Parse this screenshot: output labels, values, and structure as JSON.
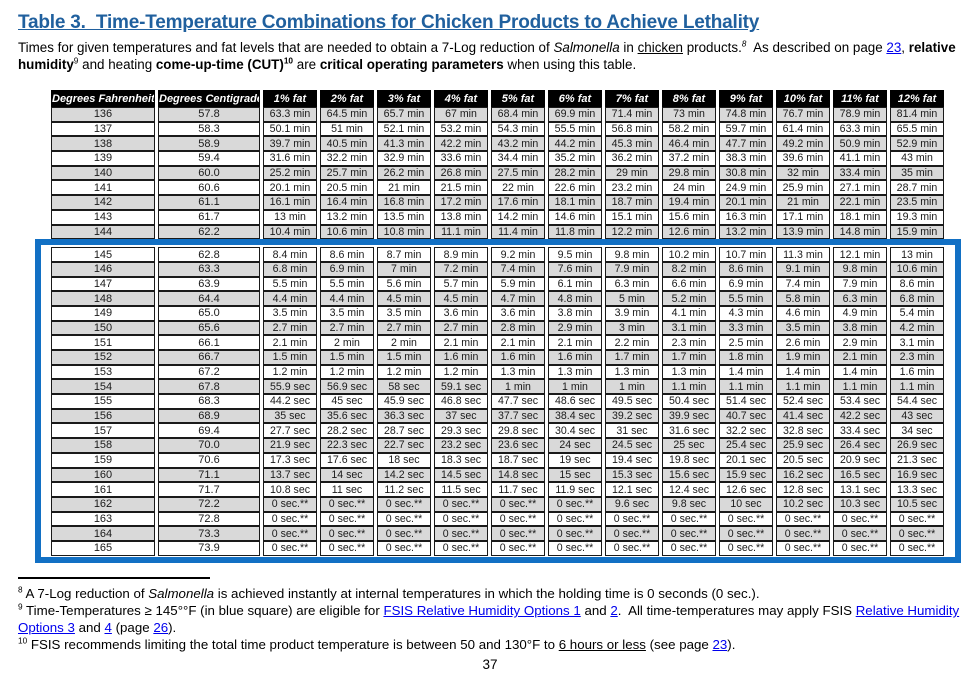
{
  "title": "Table 3.  Time-Temperature Combinations for Chicken Products to Achieve Lethality",
  "intro": {
    "segments": [
      {
        "t": "Times for given temperatures and fat levels that are needed to obtain a 7-Log reduction of "
      },
      {
        "t": "Salmonella",
        "s": "i"
      },
      {
        "t": " in "
      },
      {
        "t": "chicken",
        "s": "u"
      },
      {
        "t": " products.",
        "s": ""
      },
      {
        "t": "8",
        "s": "sup i"
      },
      {
        "t": "  As described on page "
      },
      {
        "t": "23",
        "s": "link"
      },
      {
        "t": ", "
      },
      {
        "t": "relative humidity",
        "s": "b"
      },
      {
        "t": "9",
        "s": "sup"
      },
      {
        "t": " and heating "
      },
      {
        "t": "come-up-time (CUT)",
        "s": "b"
      },
      {
        "t": "10",
        "s": "sup b"
      },
      {
        "t": " are "
      },
      {
        "t": "critical operating parameters",
        "s": "b"
      },
      {
        "t": " when using this table."
      }
    ]
  },
  "table": {
    "headers": [
      "Degrees Fahrenheit",
      "Degrees Centigrade",
      "1% fat",
      "2% fat",
      "3% fat",
      "4% fat",
      "5% fat",
      "6% fat",
      "7% fat",
      "8% fat",
      "9% fat",
      "10% fat",
      "11% fat",
      "12% fat"
    ],
    "rows_above": [
      [
        "136",
        "57.8",
        "63.3 min",
        "64.5 min",
        "65.7 min",
        "67 min",
        "68.4 min",
        "69.9 min",
        "71.4 min",
        "73 min",
        "74.8 min",
        "76.7 min",
        "78.9 min",
        "81.4 min"
      ],
      [
        "137",
        "58.3",
        "50.1 min",
        "51 min",
        "52.1 min",
        "53.2 min",
        "54.3 min",
        "55.5 min",
        "56.8 min",
        "58.2 min",
        "59.7 min",
        "61.4 min",
        "63.3 min",
        "65.5 min"
      ],
      [
        "138",
        "58.9",
        "39.7 min",
        "40.5 min",
        "41.3 min",
        "42.2 min",
        "43.2 min",
        "44.2 min",
        "45.3 min",
        "46.4 min",
        "47.7 min",
        "49.2 min",
        "50.9 min",
        "52.9 min"
      ],
      [
        "139",
        "59.4",
        "31.6 min",
        "32.2 min",
        "32.9 min",
        "33.6 min",
        "34.4 min",
        "35.2 min",
        "36.2 min",
        "37.2 min",
        "38.3 min",
        "39.6 min",
        "41.1 min",
        "43 min"
      ],
      [
        "140",
        "60.0",
        "25.2 min",
        "25.7 min",
        "26.2 min",
        "26.8 min",
        "27.5 min",
        "28.2 min",
        "29 min",
        "29.8 min",
        "30.8 min",
        "32 min",
        "33.4 min",
        "35 min"
      ],
      [
        "141",
        "60.6",
        "20.1 min",
        "20.5 min",
        "21 min",
        "21.5 min",
        "22 min",
        "22.6 min",
        "23.2 min",
        "24 min",
        "24.9 min",
        "25.9 min",
        "27.1 min",
        "28.7 min"
      ],
      [
        "142",
        "61.1",
        "16.1 min",
        "16.4 min",
        "16.8 min",
        "17.2 min",
        "17.6 min",
        "18.1 min",
        "18.7 min",
        "19.4 min",
        "20.1 min",
        "21 min",
        "22.1 min",
        "23.5 min"
      ],
      [
        "143",
        "61.7",
        "13 min",
        "13.2 min",
        "13.5 min",
        "13.8 min",
        "14.2 min",
        "14.6 min",
        "15.1 min",
        "15.6 min",
        "16.3 min",
        "17.1 min",
        "18.1 min",
        "19.3 min"
      ],
      [
        "144",
        "62.2",
        "10.4 min",
        "10.6 min",
        "10.8 min",
        "11.1 min",
        "11.4 min",
        "11.8 min",
        "12.2 min",
        "12.6 min",
        "13.2 min",
        "13.9 min",
        "14.8 min",
        "15.9 min"
      ]
    ],
    "rows_blue": [
      [
        "145",
        "62.8",
        "8.4 min",
        "8.6 min",
        "8.7 min",
        "8.9 min",
        "9.2 min",
        "9.5 min",
        "9.8 min",
        "10.2 min",
        "10.7 min",
        "11.3 min",
        "12.1 min",
        "13 min"
      ],
      [
        "146",
        "63.3",
        "6.8 min",
        "6.9 min",
        "7 min",
        "7.2 min",
        "7.4 min",
        "7.6 min",
        "7.9 min",
        "8.2 min",
        "8.6 min",
        "9.1 min",
        "9.8 min",
        "10.6 min"
      ],
      [
        "147",
        "63.9",
        "5.5 min",
        "5.5 min",
        "5.6 min",
        "5.7 min",
        "5.9 min",
        "6.1 min",
        "6.3 min",
        "6.6 min",
        "6.9 min",
        "7.4 min",
        "7.9 min",
        "8.6 min"
      ],
      [
        "148",
        "64.4",
        "4.4 min",
        "4.4 min",
        "4.5 min",
        "4.5 min",
        "4.7 min",
        "4.8 min",
        "5 min",
        "5.2 min",
        "5.5 min",
        "5.8 min",
        "6.3 min",
        "6.8 min"
      ],
      [
        "149",
        "65.0",
        "3.5 min",
        "3.5 min",
        "3.5 min",
        "3.6 min",
        "3.6 min",
        "3.8 min",
        "3.9 min",
        "4.1 min",
        "4.3 min",
        "4.6 min",
        "4.9 min",
        "5.4 min"
      ],
      [
        "150",
        "65.6",
        "2.7 min",
        "2.7 min",
        "2.7 min",
        "2.7 min",
        "2.8 min",
        "2.9 min",
        "3 min",
        "3.1 min",
        "3.3 min",
        "3.5 min",
        "3.8 min",
        "4.2 min"
      ],
      [
        "151",
        "66.1",
        "2.1 min",
        "2 min",
        "2 min",
        "2.1 min",
        "2.1 min",
        "2.1 min",
        "2.2 min",
        "2.3 min",
        "2.5 min",
        "2.6 min",
        "2.9 min",
        "3.1 min"
      ],
      [
        "152",
        "66.7",
        "1.5 min",
        "1.5 min",
        "1.5 min",
        "1.6 min",
        "1.6 min",
        "1.6 min",
        "1.7 min",
        "1.7 min",
        "1.8 min",
        "1.9 min",
        "2.1 min",
        "2.3 min"
      ],
      [
        "153",
        "67.2",
        "1.2 min",
        "1.2 min",
        "1.2 min",
        "1.2 min",
        "1.3 min",
        "1.3 min",
        "1.3 min",
        "1.3 min",
        "1.4 min",
        "1.4 min",
        "1.4 min",
        "1.6 min"
      ],
      [
        "154",
        "67.8",
        "55.9 sec",
        "56.9 sec",
        "58 sec",
        "59.1 sec",
        "1 min",
        "1 min",
        "1 min",
        "1.1 min",
        "1.1 min",
        "1.1 min",
        "1.1 min",
        "1.1 min"
      ],
      [
        "155",
        "68.3",
        "44.2 sec",
        "45 sec",
        "45.9 sec",
        "46.8 sec",
        "47.7 sec",
        "48.6 sec",
        "49.5 sec",
        "50.4 sec",
        "51.4 sec",
        "52.4 sec",
        "53.4 sec",
        "54.4 sec"
      ],
      [
        "156",
        "68.9",
        "35 sec",
        "35.6 sec",
        "36.3 sec",
        "37 sec",
        "37.7 sec",
        "38.4 sec",
        "39.2 sec",
        "39.9 sec",
        "40.7 sec",
        "41.4 sec",
        "42.2 sec",
        "43 sec"
      ],
      [
        "157",
        "69.4",
        "27.7 sec",
        "28.2 sec",
        "28.7 sec",
        "29.3 sec",
        "29.8 sec",
        "30.4 sec",
        "31 sec",
        "31.6 sec",
        "32.2 sec",
        "32.8 sec",
        "33.4 sec",
        "34 sec"
      ],
      [
        "158",
        "70.0",
        "21.9 sec",
        "22.3 sec",
        "22.7 sec",
        "23.2 sec",
        "23.6 sec",
        "24 sec",
        "24.5 sec",
        "25 sec",
        "25.4 sec",
        "25.9 sec",
        "26.4 sec",
        "26.9 sec"
      ],
      [
        "159",
        "70.6",
        "17.3 sec",
        "17.6 sec",
        "18 sec",
        "18.3 sec",
        "18.7 sec",
        "19 sec",
        "19.4 sec",
        "19.8 sec",
        "20.1 sec",
        "20.5 sec",
        "20.9 sec",
        "21.3 sec"
      ],
      [
        "160",
        "71.1",
        "13.7 sec",
        "14 sec",
        "14.2 sec",
        "14.5 sec",
        "14.8 sec",
        "15 sec",
        "15.3 sec",
        "15.6 sec",
        "15.9 sec",
        "16.2 sec",
        "16.5 sec",
        "16.9 sec"
      ],
      [
        "161",
        "71.7",
        "10.8 sec",
        "11 sec",
        "11.2 sec",
        "11.5 sec",
        "11.7 sec",
        "11.9 sec",
        "12.1 sec",
        "12.4 sec",
        "12.6 sec",
        "12.8 sec",
        "13.1 sec",
        "13.3 sec"
      ],
      [
        "162",
        "72.2",
        "0 sec.**",
        "0 sec.**",
        "0 sec.**",
        "0 sec.**",
        "0 sec.**",
        "0 sec.**",
        "9.6 sec",
        "9.8 sec",
        "10 sec",
        "10.2 sec",
        "10.3 sec",
        "10.5 sec"
      ],
      [
        "163",
        "72.8",
        "0 sec.**",
        "0 sec.**",
        "0 sec.**",
        "0 sec.**",
        "0 sec.**",
        "0 sec.**",
        "0 sec.**",
        "0 sec.**",
        "0 sec.**",
        "0 sec.**",
        "0 sec.**",
        "0 sec.**"
      ],
      [
        "164",
        "73.3",
        "0 sec.**",
        "0 sec.**",
        "0 sec.**",
        "0 sec.**",
        "0 sec.**",
        "0 sec.**",
        "0 sec.**",
        "0 sec.**",
        "0 sec.**",
        "0 sec.**",
        "0 sec.**",
        "0 sec.**"
      ],
      [
        "165",
        "73.9",
        "0 sec.**",
        "0 sec.**",
        "0 sec.**",
        "0 sec.**",
        "0 sec.**",
        "0 sec.**",
        "0 sec.**",
        "0 sec.**",
        "0 sec.**",
        "0 sec.**",
        "0 sec.**",
        "0 sec.**"
      ]
    ]
  },
  "footnotes": {
    "fn8": {
      "segments": [
        {
          "t": "8",
          "s": "sup"
        },
        {
          "t": " A 7-Log reduction of "
        },
        {
          "t": "Salmonella",
          "s": "i"
        },
        {
          "t": " is achieved instantly at internal temperatures in which the holding time is 0 seconds (0 sec.)."
        }
      ]
    },
    "fn9": {
      "segments": [
        {
          "t": "9",
          "s": "sup"
        },
        {
          "t": " Time-Temperatures ≥ 145°°F (in blue square) are eligible for "
        },
        {
          "t": "FSIS Relative Humidity Options 1",
          "s": "link"
        },
        {
          "t": " and "
        },
        {
          "t": "2",
          "s": "link"
        },
        {
          "t": ".  All time-temperatures may apply FSIS "
        },
        {
          "t": "Relative Humidity Options 3",
          "s": "link"
        },
        {
          "t": " and "
        },
        {
          "t": "4",
          "s": "link"
        },
        {
          "t": " (page "
        },
        {
          "t": "26",
          "s": "link"
        },
        {
          "t": ")."
        }
      ]
    },
    "fn10": {
      "segments": [
        {
          "t": "10",
          "s": "sup"
        },
        {
          "t": " FSIS recommends limiting the total time product temperature is between 50 and 130°F to "
        },
        {
          "t": "6 hours or less",
          "s": "u"
        },
        {
          "t": " (see page "
        },
        {
          "t": "23",
          "s": "link"
        },
        {
          "t": ")."
        }
      ]
    }
  },
  "page_number": "37",
  "colors": {
    "title_blue": "#20609E",
    "highlight_blue": "#1270C4",
    "link_blue": "#0000EE",
    "row_shade": "#D9D9D9",
    "header_bg": "#000000"
  }
}
